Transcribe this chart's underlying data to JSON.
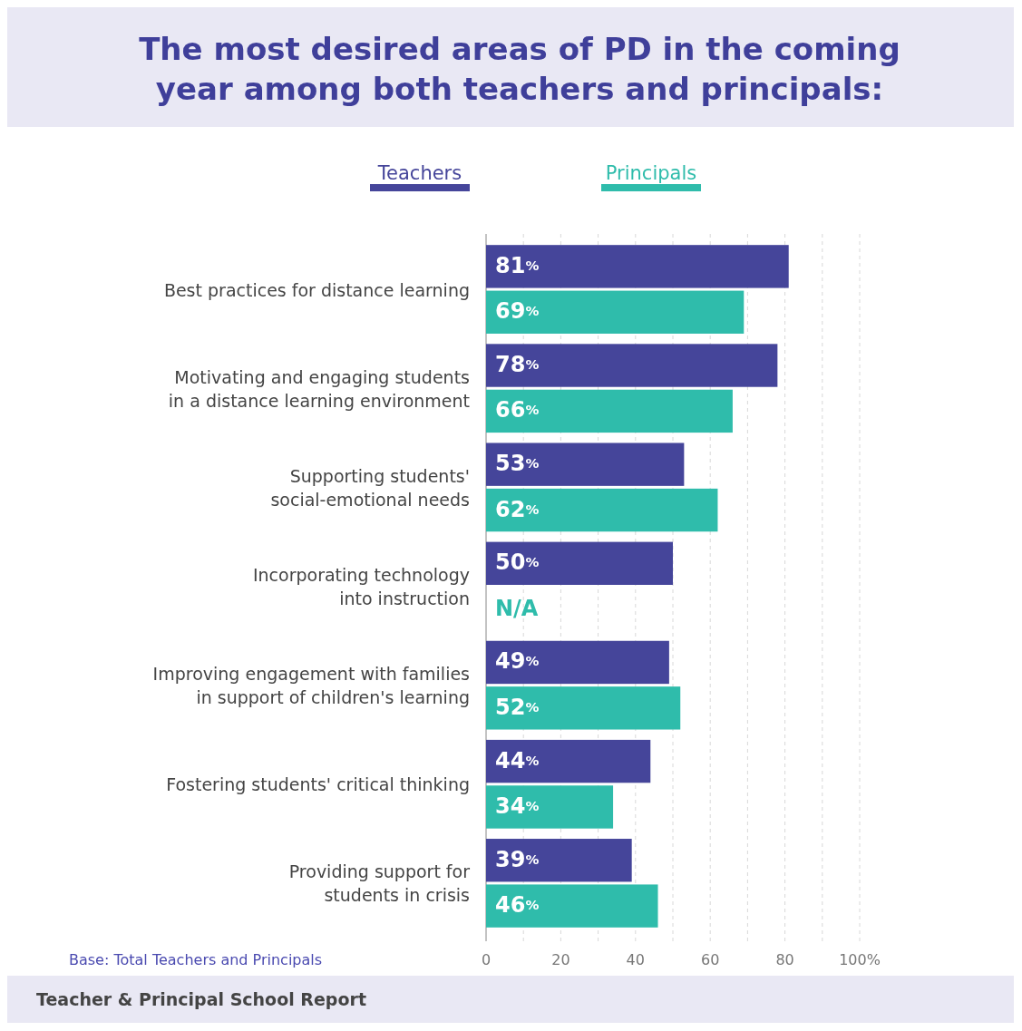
{
  "chart_data": {
    "type": "bar",
    "orientation": "horizontal",
    "title": "The most desired areas of PD in the coming year among both teachers and principals:",
    "categories": [
      "Best practices for distance learning",
      "Motivating and engaging students in a distance learning environment",
      "Supporting students' social-emotional needs",
      "Incorporating technology into instruction",
      "Improving engagement with families in support of children's learning",
      "Fostering students' critical thinking",
      "Providing support for students in crisis"
    ],
    "series": [
      {
        "name": "Teachers",
        "color": "#45459a",
        "values": [
          81,
          78,
          53,
          50,
          49,
          44,
          39
        ],
        "value_labels": [
          "81%",
          "78%",
          "53%",
          "50%",
          "49%",
          "44%",
          "39%"
        ]
      },
      {
        "name": "Principals",
        "color": "#2fbcab",
        "values": [
          69,
          66,
          62,
          null,
          52,
          34,
          46
        ],
        "value_labels": [
          "69%",
          "66%",
          "62%",
          "N/A",
          "52%",
          "34%",
          "46%"
        ]
      }
    ],
    "xlim": [
      0,
      100
    ],
    "xticks": [
      0,
      {
        "value": 10,
        "label": null
      },
      20,
      {
        "value": 30,
        "label": null
      },
      40,
      {
        "value": 50,
        "label": null
      },
      60,
      {
        "value": 70,
        "label": null
      },
      80,
      {
        "value": 90,
        "label": null
      },
      {
        "value": 100,
        "label": "100%"
      }
    ],
    "grid": "x",
    "legend": "top",
    "annotations": [
      "Base: Total Teachers and Principals",
      "Teacher & Principal School Report"
    ]
  }
}
